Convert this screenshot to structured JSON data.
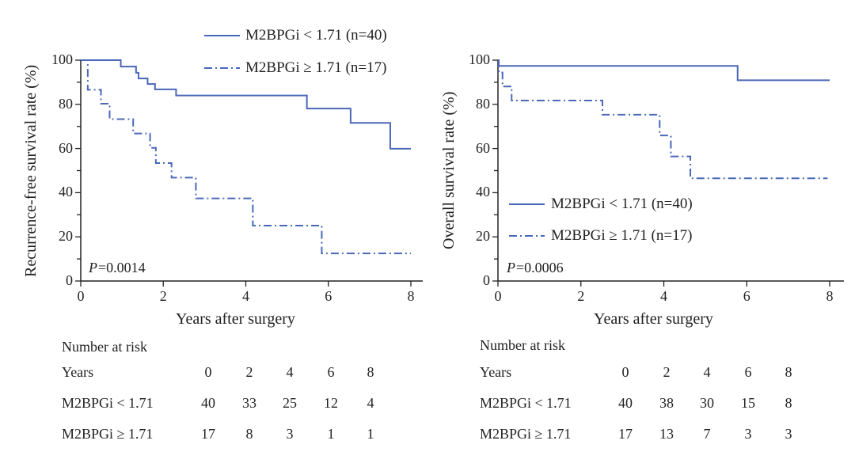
{
  "colors": {
    "series": "#4a68b8",
    "axis": "#222222"
  },
  "chart_data": [
    {
      "type": "line",
      "subtype": "kaplan-meier",
      "xlabel": "Years after surgery",
      "ylabel": "Recurrence-free survival rate (%)",
      "xlim": [
        0,
        8
      ],
      "ylim": [
        0,
        100
      ],
      "xticks": [
        0,
        2,
        4,
        6,
        8
      ],
      "yticks": [
        0,
        20,
        40,
        60,
        80,
        100
      ],
      "legend_placement": "top-right",
      "annotation": {
        "p_label": "P",
        "p_value": "=0.0014"
      },
      "series": [
        {
          "name": "M2BPGi < 1.71 (n=40)",
          "style": "solid",
          "steps": [
            [
              0,
              100
            ],
            [
              0.97,
              97.1
            ],
            [
              1.34,
              94.3
            ],
            [
              1.4,
              91.7
            ],
            [
              1.62,
              89.2
            ],
            [
              1.8,
              86.8
            ],
            [
              2.31,
              84.0
            ],
            [
              5.48,
              78.1
            ],
            [
              6.54,
              71.6
            ],
            [
              7.5,
              59.9
            ],
            [
              8,
              59.9
            ]
          ]
        },
        {
          "name": "M2BPGi ≥ 1.71 (n=17)",
          "style": "dashdot",
          "steps": [
            [
              0,
              100
            ],
            [
              0.17,
              86.6
            ],
            [
              0.49,
              80.3
            ],
            [
              0.7,
              73.3
            ],
            [
              1.27,
              66.8
            ],
            [
              1.68,
              60.3
            ],
            [
              1.82,
              53.4
            ],
            [
              2.2,
              46.8
            ],
            [
              2.79,
              37.4
            ],
            [
              4.17,
              25.1
            ],
            [
              5.84,
              12.5
            ],
            [
              8,
              12.5
            ]
          ]
        }
      ],
      "risk_table": {
        "title": "Number at risk",
        "header": "Years",
        "years": [
          "0",
          "2",
          "4",
          "6",
          "8"
        ],
        "rows": [
          {
            "label": "M2BPGi < 1.71",
            "values": [
              "40",
              "33",
              "25",
              "12",
              "4"
            ]
          },
          {
            "label": "M2BPGi ≥ 1.71",
            "values": [
              "17",
              "8",
              "3",
              "1",
              "1"
            ]
          }
        ]
      }
    },
    {
      "type": "line",
      "subtype": "kaplan-meier",
      "xlabel": "Years after surgery",
      "ylabel": "Overall survival rate (%)",
      "xlim": [
        0,
        8
      ],
      "ylim": [
        0,
        100
      ],
      "xticks": [
        0,
        2,
        4,
        6,
        8
      ],
      "yticks": [
        0,
        20,
        40,
        60,
        80,
        100
      ],
      "legend_placement": "bottom-left",
      "annotation": {
        "p_label": "P",
        "p_value": "=0.0006"
      },
      "series": [
        {
          "name": "M2BPGi < 1.71 (n=40)",
          "style": "solid",
          "steps": [
            [
              0,
              100
            ],
            [
              0.02,
              97.4
            ],
            [
              5.78,
              90.9
            ],
            [
              8,
              90.9
            ]
          ]
        },
        {
          "name": "M2BPGi ≥ 1.71 (n=17)",
          "style": "dashdot",
          "steps": [
            [
              0,
              100
            ],
            [
              0.02,
              94.4
            ],
            [
              0.11,
              88.1
            ],
            [
              0.33,
              81.7
            ],
            [
              2.52,
              75.3
            ],
            [
              3.9,
              65.9
            ],
            [
              4.17,
              56.4
            ],
            [
              4.64,
              46.5
            ],
            [
              7.95,
              46.5
            ]
          ]
        }
      ],
      "risk_table": {
        "title": "Number at risk",
        "header": "Years",
        "years": [
          "0",
          "2",
          "4",
          "6",
          "8"
        ],
        "rows": [
          {
            "label": "M2BPGi < 1.71",
            "values": [
              "40",
              "38",
              "30",
              "15",
              "8"
            ]
          },
          {
            "label": "M2BPGi ≥ 1.71",
            "values": [
              "17",
              "13",
              "7",
              "3",
              "3"
            ]
          }
        ]
      }
    }
  ]
}
